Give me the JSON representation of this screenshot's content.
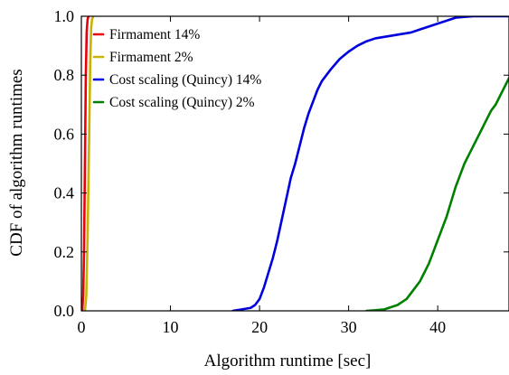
{
  "chart_data": {
    "type": "line",
    "xlabel": "Algorithm runtime [sec]",
    "ylabel": "CDF of algorithm runtimes",
    "xlim": [
      0,
      48
    ],
    "ylim": [
      0,
      1
    ],
    "x_ticks": [
      0,
      10,
      20,
      30,
      40
    ],
    "y_ticks": [
      0.0,
      0.2,
      0.4,
      0.6,
      0.8,
      1.0
    ],
    "x_tick_labels": [
      "0",
      "10",
      "20",
      "30",
      "40"
    ],
    "y_tick_labels": [
      "0.0",
      "0.2",
      "0.4",
      "0.6",
      "0.8",
      "1.0"
    ],
    "grid": false,
    "legend_position": "top-left",
    "series": [
      {
        "name": "Firmament 14%",
        "color": "#e8000b",
        "x": [
          0.1,
          0.2,
          0.3,
          0.4,
          0.5,
          0.6,
          0.7,
          0.8
        ],
        "y": [
          0.0,
          0.05,
          0.2,
          0.5,
          0.8,
          0.95,
          0.99,
          1.0
        ]
      },
      {
        "name": "Firmament 2%",
        "color": "#c8b400",
        "x": [
          0.4,
          0.55,
          0.7,
          0.85,
          1.0,
          1.1,
          1.2,
          1.35
        ],
        "y": [
          0.0,
          0.05,
          0.25,
          0.55,
          0.85,
          0.96,
          0.99,
          1.0
        ]
      },
      {
        "name": "Cost scaling (Quincy) 14%",
        "color": "#0000dd",
        "x": [
          17.0,
          18.0,
          19.0,
          19.5,
          20.0,
          20.5,
          21.0,
          21.5,
          22.0,
          22.5,
          23.0,
          23.5,
          24.0,
          24.5,
          25.0,
          25.5,
          26.0,
          26.5,
          27.0,
          28.0,
          29.0,
          30.0,
          31.0,
          32.0,
          33.0,
          34.0,
          35.0,
          36.0,
          37.0,
          38.0,
          39.0,
          40.0,
          41.0,
          42.0,
          43.0,
          44.0,
          48.0
        ],
        "y": [
          0.0,
          0.005,
          0.01,
          0.02,
          0.04,
          0.08,
          0.13,
          0.18,
          0.24,
          0.31,
          0.38,
          0.45,
          0.5,
          0.56,
          0.62,
          0.67,
          0.71,
          0.75,
          0.78,
          0.82,
          0.855,
          0.88,
          0.9,
          0.915,
          0.925,
          0.93,
          0.935,
          0.94,
          0.945,
          0.955,
          0.965,
          0.975,
          0.985,
          0.995,
          0.998,
          1.0,
          1.0
        ]
      },
      {
        "name": "Cost scaling (Quincy) 2%",
        "color": "#008000",
        "x": [
          32.0,
          33.0,
          34.0,
          34.5,
          35.0,
          35.5,
          36.0,
          36.5,
          37.0,
          37.5,
          38.0,
          38.5,
          39.0,
          39.5,
          40.0,
          40.5,
          41.0,
          41.5,
          42.0,
          42.5,
          43.0,
          43.5,
          44.0,
          44.5,
          45.0,
          45.5,
          46.0,
          46.5,
          47.0,
          47.5,
          48.0
        ],
        "y": [
          0.0,
          0.002,
          0.005,
          0.01,
          0.015,
          0.02,
          0.03,
          0.04,
          0.06,
          0.08,
          0.1,
          0.13,
          0.16,
          0.2,
          0.24,
          0.28,
          0.32,
          0.37,
          0.42,
          0.46,
          0.5,
          0.53,
          0.56,
          0.59,
          0.62,
          0.65,
          0.68,
          0.7,
          0.73,
          0.76,
          0.79
        ]
      }
    ]
  }
}
